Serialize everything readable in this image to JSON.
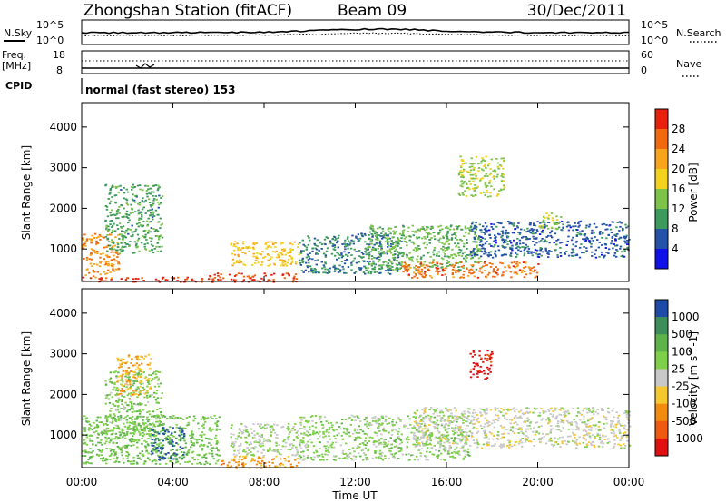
{
  "header": {
    "title": "Zhongshan Station (fitACF)",
    "beam": "Beam 09",
    "date": "30/Dec/2011"
  },
  "noise_panel": {
    "left_label": "N.Sky",
    "right_label": "N.Search",
    "left_ticks": [
      "10^5",
      "10^0"
    ],
    "right_ticks": [
      "10^5",
      "10^0"
    ]
  },
  "freq_panel": {
    "left_label_1": "Freq.",
    "left_label_2": "[MHz]",
    "right_label": "Nave",
    "left_ticks": [
      "18",
      "8"
    ],
    "right_ticks": [
      "60",
      "0"
    ]
  },
  "cpid": {
    "label": "CPID",
    "value": "normal (fast stereo) 153"
  },
  "colorbars": {
    "power": {
      "label": "Power [dB]",
      "ticks": [
        "28",
        "24",
        "20",
        "16",
        "12",
        "8",
        "4"
      ],
      "colors": [
        "#e8200e",
        "#f26a10",
        "#f7a51c",
        "#f2d21c",
        "#7dc34a",
        "#3d9a5c",
        "#2452a8",
        "#1010e8"
      ]
    },
    "velocity": {
      "label": "Velocity [m s^-1]",
      "ticks": [
        "1000",
        "500",
        "100",
        "25",
        "-25",
        "-100",
        "-500",
        "-1000"
      ],
      "colors": [
        "#1e4aa8",
        "#3d8f5a",
        "#5eb24a",
        "#7ed04a",
        "#c8c8c8",
        "#f5c830",
        "#f28c10",
        "#ee5a10",
        "#e01010"
      ]
    }
  },
  "chart_data": [
    {
      "type": "heatmap",
      "title": "Power",
      "ylabel": "Slant Range [km]",
      "yticks": [
        "1000",
        "2000",
        "3000",
        "4000"
      ],
      "ylim": [
        200,
        4600
      ],
      "colorbar": "Power [dB]",
      "color_range": [
        0,
        30
      ],
      "regions": [
        {
          "t": [
            0.0,
            1.6
          ],
          "r": [
            300,
            1400
          ],
          "value": 22
        },
        {
          "t": [
            1.0,
            3.5
          ],
          "r": [
            900,
            2600
          ],
          "value": 10
        },
        {
          "t": [
            0.0,
            6.0
          ],
          "r": [
            200,
            320
          ],
          "value": 28
        },
        {
          "t": [
            5.5,
            9.5
          ],
          "r": [
            200,
            420
          ],
          "value": 27
        },
        {
          "t": [
            6.5,
            9.5
          ],
          "r": [
            600,
            1200
          ],
          "value": 18
        },
        {
          "t": [
            9.5,
            14.0
          ],
          "r": [
            400,
            1400
          ],
          "value": 8
        },
        {
          "t": [
            12.5,
            17.5
          ],
          "r": [
            500,
            1600
          ],
          "value": 12
        },
        {
          "t": [
            14.0,
            20.0
          ],
          "r": [
            300,
            700
          ],
          "value": 24
        },
        {
          "t": [
            16.5,
            18.5
          ],
          "r": [
            2300,
            3300
          ],
          "value": 14
        },
        {
          "t": [
            17.0,
            24.0
          ],
          "r": [
            800,
            1700
          ],
          "value": 6
        },
        {
          "t": [
            20.0,
            21.0
          ],
          "r": [
            1500,
            1900
          ],
          "value": 14
        }
      ]
    },
    {
      "type": "heatmap",
      "title": "Velocity",
      "ylabel": "Slant Range [km]",
      "yticks": [
        "1000",
        "2000",
        "3000",
        "4000"
      ],
      "ylim": [
        200,
        4600
      ],
      "colorbar": "Velocity [m s^-1]",
      "color_range": [
        -1000,
        1000
      ],
      "xlabel": "Time UT",
      "xticks": [
        "00:00",
        "04:00",
        "08:00",
        "12:00",
        "16:00",
        "20:00",
        "00:00"
      ],
      "xlim": [
        0,
        24
      ],
      "regions": [
        {
          "t": [
            0.0,
            6.0
          ],
          "r": [
            300,
            1500
          ],
          "value": 300
        },
        {
          "t": [
            1.0,
            3.5
          ],
          "r": [
            900,
            2600
          ],
          "value": 250
        },
        {
          "t": [
            3.0,
            4.5
          ],
          "r": [
            400,
            1200
          ],
          "value": 800
        },
        {
          "t": [
            6.0,
            9.5
          ],
          "r": [
            200,
            500
          ],
          "value": -400
        },
        {
          "t": [
            6.5,
            9.5
          ],
          "r": [
            500,
            1300
          ],
          "value": 120
        },
        {
          "t": [
            9.5,
            17.0
          ],
          "r": [
            400,
            1500
          ],
          "value": 200
        },
        {
          "t": [
            14.5,
            24.0
          ],
          "r": [
            700,
            1700
          ],
          "value": 0
        },
        {
          "t": [
            17.0,
            18.0
          ],
          "r": [
            2400,
            3100
          ],
          "value": -900
        },
        {
          "t": [
            1.5,
            3.0
          ],
          "r": [
            2000,
            3000
          ],
          "value": -300
        }
      ]
    }
  ]
}
